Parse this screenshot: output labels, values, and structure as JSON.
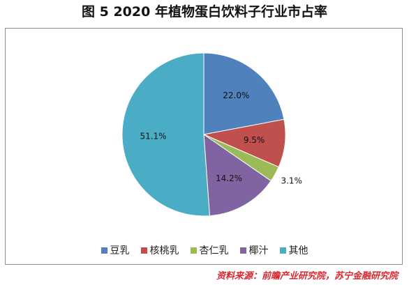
{
  "title": "图 5  2020 年植物蛋白饮料子行业市占率",
  "chart_data": {
    "type": "pie",
    "title": "",
    "slices": [
      {
        "name": "豆乳",
        "value": 22.0,
        "label": "22.0%",
        "color": "#4f81bd"
      },
      {
        "name": "核桃乳",
        "value": 9.5,
        "label": "9.5%",
        "color": "#c0504d"
      },
      {
        "name": "杏仁乳",
        "value": 3.1,
        "label": "3.1%",
        "color": "#9bbb59"
      },
      {
        "name": "椰汁",
        "value": 14.2,
        "label": "14.2%",
        "color": "#8064a2"
      },
      {
        "name": "其他",
        "value": 51.1,
        "label": "51.1%",
        "color": "#4bacc6"
      }
    ],
    "start_angle": "12 o'clock",
    "direction": "clockwise",
    "legend_position": "bottom"
  },
  "legend": {
    "items": [
      {
        "label": "豆乳",
        "color": "#4f81bd"
      },
      {
        "label": "核桃乳",
        "color": "#c0504d"
      },
      {
        "label": "杏仁乳",
        "color": "#9bbb59"
      },
      {
        "label": "椰汁",
        "color": "#8064a2"
      },
      {
        "label": "其他",
        "color": "#4bacc6"
      }
    ]
  },
  "source": "资料来源：前瞻产业研究院，苏宁金融研究院"
}
